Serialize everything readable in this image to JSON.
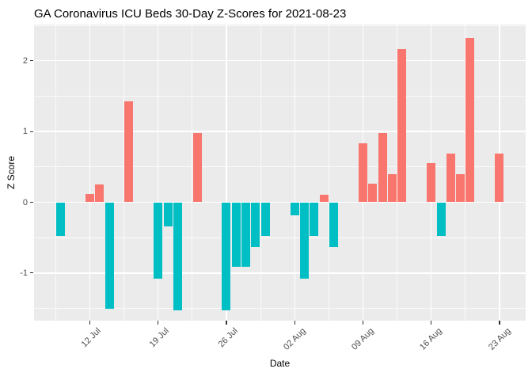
{
  "title": "GA Coronavirus ICU Beds 30-Day Z-Scores for 2021-08-23",
  "chart_data": {
    "type": "bar",
    "title": "GA Coronavirus ICU Beds 30-Day Z-Scores for 2021-08-23",
    "xlabel": "Date",
    "ylabel": "Z Score",
    "x_origin": "2021-07-12",
    "ylim": [
      -1.67,
      2.51
    ],
    "grid": {
      "major": true,
      "minor": true,
      "style": "white lines on gray panel"
    },
    "legend": "none",
    "yticks": [
      {
        "value": 2,
        "label": "2"
      },
      {
        "value": 1,
        "label": "1"
      },
      {
        "value": 0,
        "label": "0"
      },
      {
        "value": -1,
        "label": "-1"
      }
    ],
    "xticks": [
      {
        "date": "2021-07-12",
        "label": "12 Jul"
      },
      {
        "date": "2021-07-19",
        "label": "19 Jul"
      },
      {
        "date": "2021-07-26",
        "label": "26 Jul"
      },
      {
        "date": "2021-08-02",
        "label": "02 Aug"
      },
      {
        "date": "2021-08-09",
        "label": "09 Aug"
      },
      {
        "date": "2021-08-16",
        "label": "16 Aug"
      },
      {
        "date": "2021-08-23",
        "label": "23 Aug"
      }
    ],
    "colors": {
      "positive_bar": "#F8766D",
      "negative_bar": "#00BFC4",
      "panel_background": "#EBEBEB",
      "gridline": "#FFFFFF",
      "axis_text": "#4D4D4D",
      "title_text": "#000000"
    },
    "bars": [
      {
        "date": "2021-07-09",
        "value": -0.48
      },
      {
        "date": "2021-07-12",
        "value": 0.12
      },
      {
        "date": "2021-07-13",
        "value": 0.25
      },
      {
        "date": "2021-07-14",
        "value": -1.51
      },
      {
        "date": "2021-07-16",
        "value": 1.43
      },
      {
        "date": "2021-07-19",
        "value": -1.08
      },
      {
        "date": "2021-07-20",
        "value": -0.34
      },
      {
        "date": "2021-07-21",
        "value": -1.53
      },
      {
        "date": "2021-07-23",
        "value": 0.98
      },
      {
        "date": "2021-07-26",
        "value": -1.53
      },
      {
        "date": "2021-07-27",
        "value": -0.91
      },
      {
        "date": "2021-07-28",
        "value": -0.91
      },
      {
        "date": "2021-07-29",
        "value": -0.63
      },
      {
        "date": "2021-07-30",
        "value": -0.48
      },
      {
        "date": "2021-08-02",
        "value": -0.19
      },
      {
        "date": "2021-08-03",
        "value": -1.08
      },
      {
        "date": "2021-08-04",
        "value": -0.48
      },
      {
        "date": "2021-08-05",
        "value": 0.11
      },
      {
        "date": "2021-08-06",
        "value": -0.63
      },
      {
        "date": "2021-08-09",
        "value": 0.83
      },
      {
        "date": "2021-08-10",
        "value": 0.26
      },
      {
        "date": "2021-08-11",
        "value": 0.98
      },
      {
        "date": "2021-08-12",
        "value": 0.4
      },
      {
        "date": "2021-08-13",
        "value": 2.16
      },
      {
        "date": "2021-08-16",
        "value": 0.55
      },
      {
        "date": "2021-08-17",
        "value": -0.48
      },
      {
        "date": "2021-08-18",
        "value": 0.69
      },
      {
        "date": "2021-08-19",
        "value": 0.4
      },
      {
        "date": "2021-08-20",
        "value": 2.32
      },
      {
        "date": "2021-08-23",
        "value": 0.69
      }
    ]
  }
}
